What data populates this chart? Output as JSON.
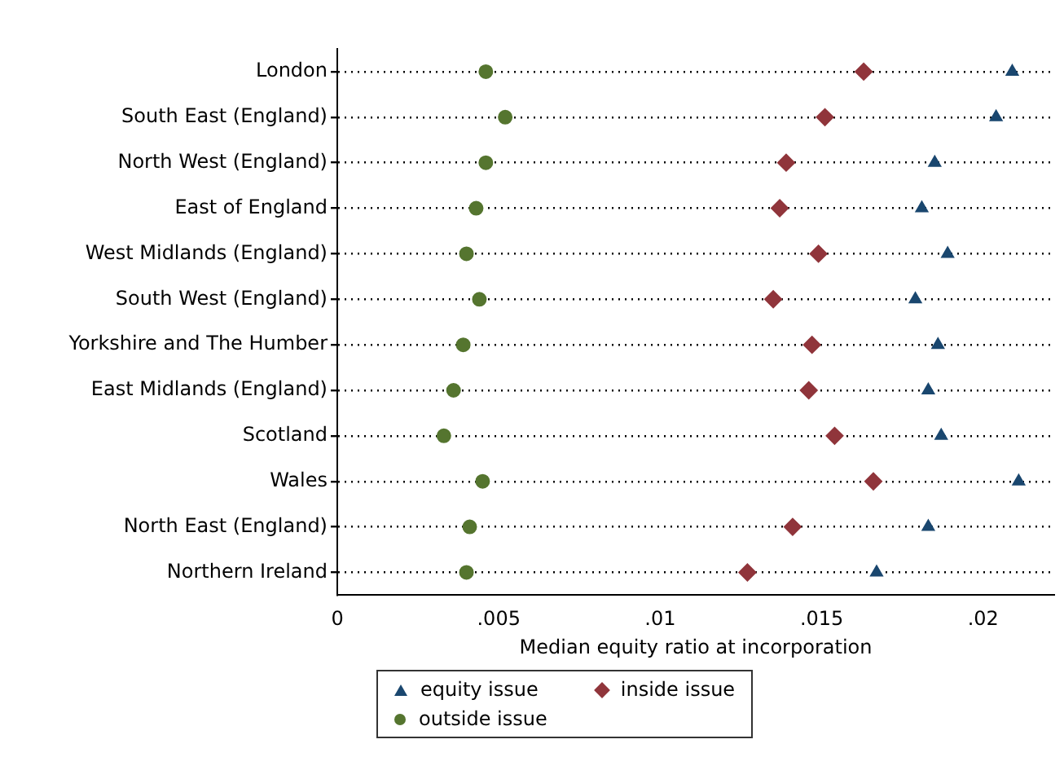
{
  "chart_data": {
    "type": "scatter",
    "orientation": "horizontal",
    "xlabel": "Median equity ratio at incorporation",
    "categories": [
      "London",
      "South East (England)",
      "North West (England)",
      "East of England",
      "West Midlands (England)",
      "South West (England)",
      "Yorkshire and The Humber",
      "East Midlands (England)",
      "Scotland",
      "Wales",
      "North East (England)",
      "Northern Ireland"
    ],
    "series": [
      {
        "name": "equity issue",
        "color": "#1a476f",
        "marker": "triangle",
        "values": [
          0.0209,
          0.0204,
          0.0185,
          0.0181,
          0.0189,
          0.0179,
          0.0186,
          0.0183,
          0.0187,
          0.0211,
          0.0183,
          0.0167
        ]
      },
      {
        "name": "inside issue",
        "color": "#90353b",
        "marker": "diamond",
        "values": [
          0.0163,
          0.0151,
          0.0139,
          0.0137,
          0.0149,
          0.0135,
          0.0147,
          0.0146,
          0.0154,
          0.0166,
          0.0141,
          0.0127
        ]
      },
      {
        "name": "outside issue",
        "color": "#55752f",
        "marker": "circle",
        "values": [
          0.0046,
          0.0052,
          0.0046,
          0.0043,
          0.004,
          0.0044,
          0.0039,
          0.0036,
          0.0033,
          0.0045,
          0.0041,
          0.004
        ]
      }
    ],
    "xlim": [
      0,
      0.0222
    ],
    "xticks": [
      0,
      {
        "value": 0.005,
        "label": ".005"
      },
      {
        "value": 0.01,
        "label": ".01"
      },
      {
        "value": 0.015,
        "label": ".015"
      },
      {
        "value": 0.02,
        "label": ".02"
      }
    ],
    "grid": "y",
    "line_style": "dotted",
    "legend": "bottom"
  }
}
